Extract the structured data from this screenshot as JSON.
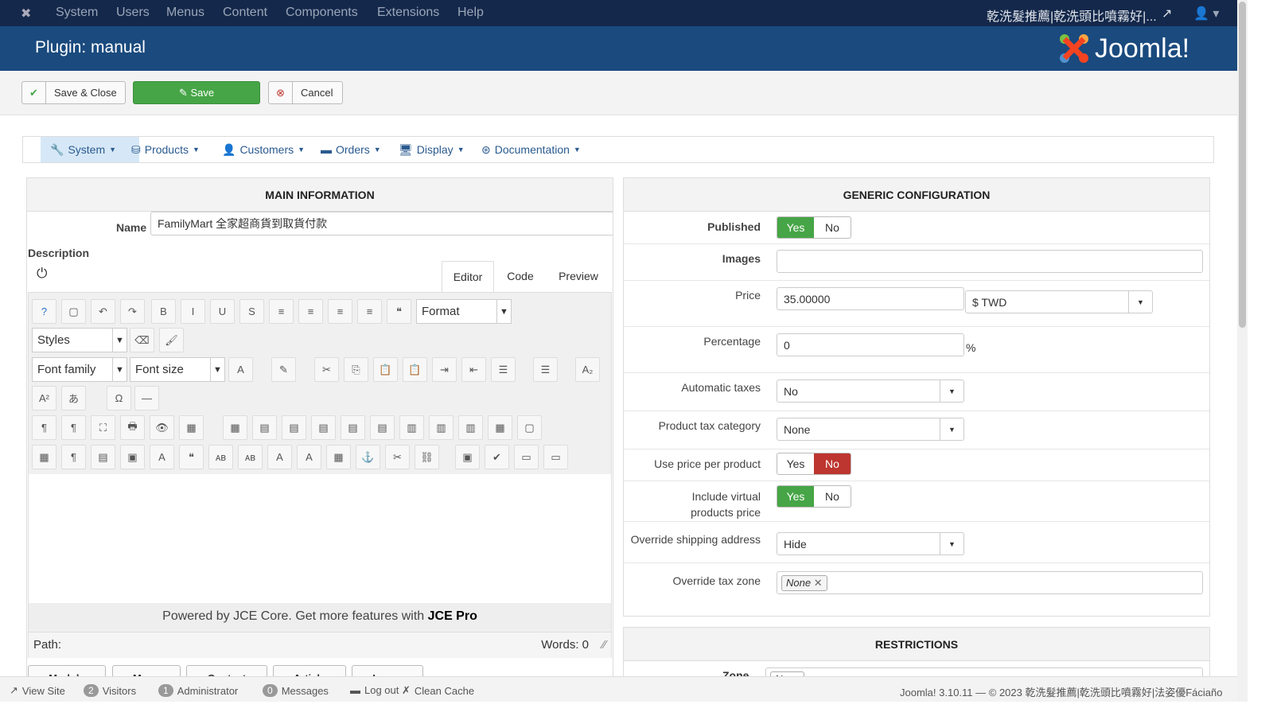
{
  "topnav": {
    "menus": [
      "System",
      "Users",
      "Menus",
      "Content",
      "Components",
      "Extensions",
      "Help"
    ],
    "site_name": "乾洗髮推薦|乾洗頭比噴霧好|..."
  },
  "header": {
    "title": "Plugin: manual",
    "logo_text": "Joomla!"
  },
  "toolbar": {
    "save_close": "Save & Close",
    "save": "Save",
    "cancel": "Cancel"
  },
  "subnav": [
    {
      "label": "System",
      "icon": "wrench-icon",
      "active": true
    },
    {
      "label": "Products",
      "icon": "cubes-icon"
    },
    {
      "label": "Customers",
      "icon": "user-icon"
    },
    {
      "label": "Orders",
      "icon": "credit-card-icon"
    },
    {
      "label": "Display",
      "icon": "monitor-icon"
    },
    {
      "label": "Documentation",
      "icon": "lifebuoy-icon"
    }
  ],
  "main": {
    "title": "MAIN INFORMATION",
    "name_label": "Name",
    "name_value": "FamilyMart 全家超商貨到取貨付款",
    "desc_label": "Description",
    "tabs": [
      "Editor",
      "Code",
      "Preview"
    ],
    "active_tab": "Editor",
    "format": "Format",
    "styles": "Styles",
    "font_family": "Font family",
    "font_size": "Font size",
    "powered_prefix": "Powered by JCE Core. Get more features with ",
    "powered_bold": "JCE Pro",
    "path_label": "Path:",
    "words": "Words: 0",
    "insert_buttons": [
      "Module",
      "Menu",
      "Contact",
      "Article",
      "Image"
    ]
  },
  "generic": {
    "title": "GENERIC CONFIGURATION",
    "published": {
      "label": "Published",
      "value": "Yes"
    },
    "images": {
      "label": "Images",
      "value": ""
    },
    "price": {
      "label": "Price",
      "value": "35.00000",
      "currency": "$ TWD"
    },
    "percentage": {
      "label": "Percentage",
      "value": "0",
      "unit": "%"
    },
    "auto_taxes": {
      "label": "Automatic taxes",
      "value": "No"
    },
    "tax_category": {
      "label": "Product tax category",
      "value": "None"
    },
    "price_per_product": {
      "label": "Use price per product",
      "value": "No"
    },
    "include_virtual": {
      "label1": "Include virtual",
      "label2": "products price",
      "value": "Yes"
    },
    "override_shipping": {
      "label": "Override shipping address",
      "value": "Hide"
    },
    "override_tax_zone": {
      "label": "Override tax zone",
      "tag": "None"
    },
    "yes": "Yes",
    "no": "No"
  },
  "restrictions": {
    "title": "RESTRICTIONS",
    "zone_label": "Zone",
    "zone_tag": "None"
  },
  "status": {
    "view_site": "View Site",
    "visitors_count": "2",
    "visitors": "Visitors",
    "admin_count": "1",
    "admin": "Administrator",
    "messages_count": "0",
    "messages": "Messages",
    "logout": "Log out",
    "clean_cache": "Clean Cache",
    "version": "Joomla! 3.10.11  —  © 2023 乾洗髮推薦|乾洗頭比噴霧好|法姿優Fáciaño"
  },
  "colors": {
    "topnav": "#14284b",
    "header": "#1a4a7e",
    "green": "#46a546",
    "red": "#bd362f"
  }
}
